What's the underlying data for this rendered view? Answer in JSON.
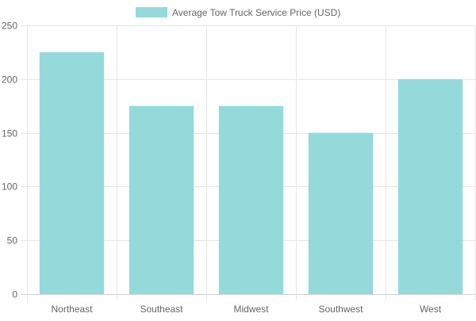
{
  "chart_data": {
    "type": "bar",
    "categories": [
      "Northeast",
      "Southeast",
      "Midwest",
      "Southwest",
      "West"
    ],
    "series": [
      {
        "name": "Average Tow Truck Service Price (USD)",
        "values": [
          225,
          175,
          175,
          150,
          200
        ],
        "color": "#8fd8d8"
      }
    ],
    "ylim": [
      0,
      250
    ],
    "yticks": [
      0,
      50,
      100,
      150,
      200,
      250
    ],
    "grid": true,
    "legend": "top-center"
  }
}
